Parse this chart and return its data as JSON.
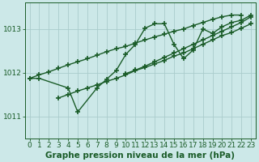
{
  "title": "Graphe pression niveau de la mer (hPa)",
  "bg_color": "#cce8e8",
  "grid_color": "#aacccc",
  "line_color": "#1a5c28",
  "xlim": [
    -0.5,
    23.5
  ],
  "ylim": [
    1010.5,
    1013.6
  ],
  "yticks": [
    1011,
    1012,
    1013
  ],
  "xticks": [
    0,
    1,
    2,
    3,
    4,
    5,
    6,
    7,
    8,
    9,
    10,
    11,
    12,
    13,
    14,
    15,
    16,
    17,
    18,
    19,
    20,
    21,
    22,
    23
  ],
  "series": {
    "s1_wiggly": [
      1011.87,
      1011.87,
      null,
      null,
      1011.65,
      1011.1,
      null,
      1011.65,
      1011.85,
      1012.05,
      1012.42,
      1012.65,
      1013.02,
      1013.12,
      1013.12,
      1012.65,
      1012.32,
      1012.52,
      1013.0,
      1012.9,
      1013.05,
      1013.15,
      1013.2,
      1013.32
    ],
    "s2_long_diag": [
      1011.87,
      1011.95,
      1012.02,
      1012.1,
      1012.18,
      1012.25,
      1012.32,
      1012.4,
      1012.48,
      1012.55,
      1012.6,
      1012.68,
      1012.75,
      1012.82,
      1012.88,
      1012.95,
      1013.0,
      1013.08,
      1013.15,
      1013.22,
      1013.28,
      1013.32,
      1013.32,
      null
    ],
    "s3_short_diag": [
      null,
      null,
      null,
      1011.42,
      1011.5,
      1011.58,
      1011.65,
      1011.72,
      1011.8,
      1011.87,
      1011.95,
      1012.05,
      1012.12,
      1012.2,
      1012.28,
      1012.38,
      1012.45,
      1012.55,
      1012.65,
      1012.75,
      1012.85,
      1012.92,
      1013.02,
      1013.12
    ],
    "s4_mid_diag": [
      null,
      null,
      null,
      null,
      null,
      null,
      null,
      null,
      null,
      null,
      1011.98,
      1012.06,
      1012.15,
      1012.25,
      1012.35,
      1012.45,
      1012.55,
      1012.65,
      1012.75,
      1012.85,
      1012.95,
      1013.05,
      1013.15,
      1013.28
    ]
  },
  "marker": "+",
  "markersize": 5,
  "linewidth": 1.0,
  "title_fontsize": 7.5,
  "tick_fontsize": 6.5
}
